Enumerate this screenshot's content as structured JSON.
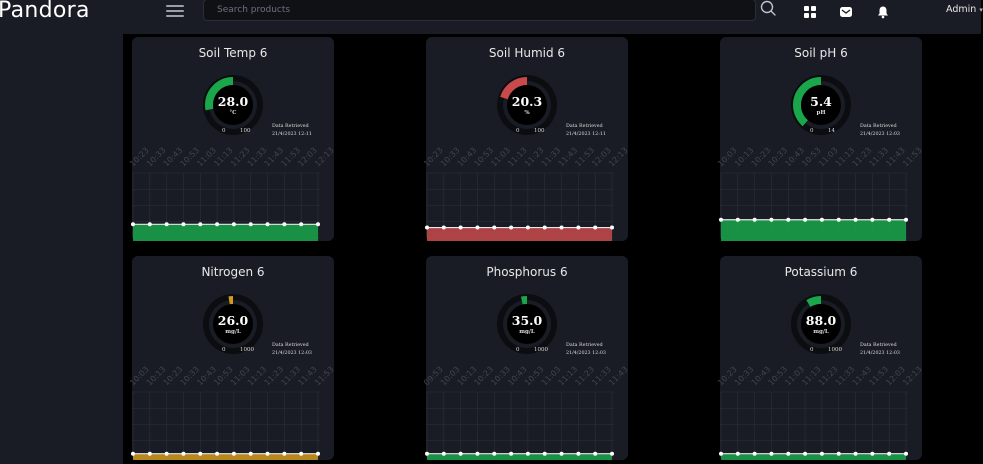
{
  "app": {
    "brand": "Pandora"
  },
  "search": {
    "placeholder": "Search products"
  },
  "user": {
    "name": "Admin"
  },
  "cards": [
    {
      "title": "Soil Temp 6",
      "value": "28.0",
      "unit": "°C",
      "min": "0",
      "max": "100",
      "level": 0.28,
      "color": "#1aa64a",
      "retrieved_label": "Data Retrieved",
      "retrieved_time": "21/4/2023 12:11",
      "ticks": [
        "10:23",
        "10:33",
        "10:43",
        "10:53",
        "11:03",
        "11:13",
        "11:23",
        "11:33",
        "11:43",
        "11:53",
        "12:03",
        "12:13"
      ],
      "series_level": 0.18
    },
    {
      "title": "Soil Humid 6",
      "value": "20.3",
      "unit": "%",
      "min": "0",
      "max": "100",
      "level": 0.203,
      "color": "#c84a4a",
      "retrieved_label": "Data Retrieved",
      "retrieved_time": "21/4/2023 12:11",
      "ticks": [
        "10:23",
        "10:33",
        "10:43",
        "10:53",
        "11:03",
        "11:13",
        "11:23",
        "11:33",
        "11:43",
        "11:53",
        "12:03",
        "12:13"
      ],
      "series_level": 0.13
    },
    {
      "title": "Soil pH 6",
      "value": "5.4",
      "unit": "pH",
      "min": "0",
      "max": "14",
      "level": 0.386,
      "color": "#1aa64a",
      "retrieved_label": "Data Retrieved",
      "retrieved_time": "21/4/2023 12:03",
      "ticks": [
        "10:03",
        "10:13",
        "10:23",
        "10:33",
        "10:43",
        "10:53",
        "11:03",
        "11:13",
        "11:23",
        "11:33",
        "11:43",
        "11:53"
      ],
      "series_level": 0.25
    },
    {
      "title": "Nitrogen 6",
      "value": "26.0",
      "unit": "mg/L",
      "min": "0",
      "max": "1000",
      "level": 0.026,
      "color": "#d49a1c",
      "retrieved_label": "Data Retrieved",
      "retrieved_time": "21/4/2023 12:03",
      "ticks": [
        "10:03",
        "10:13",
        "10:23",
        "10:33",
        "10:43",
        "10:53",
        "11:03",
        "11:13",
        "11:23",
        "11:33",
        "11:43",
        "11:53"
      ],
      "series_level": 0.02
    },
    {
      "title": "Phosphorus 6",
      "value": "35.0",
      "unit": "mg/L",
      "min": "0",
      "max": "1000",
      "level": 0.035,
      "color": "#1aa64a",
      "retrieved_label": "Data Retrieved",
      "retrieved_time": "21/4/2023 12:03",
      "ticks": [
        "09:53",
        "10:03",
        "10:13",
        "10:23",
        "10:33",
        "10:43",
        "10:53",
        "11:03",
        "11:13",
        "11:23",
        "11:33",
        "11:43"
      ],
      "series_level": 0.02
    },
    {
      "title": "Potassium 6",
      "value": "88.0",
      "unit": "mg/L",
      "min": "0",
      "max": "1000",
      "level": 0.088,
      "color": "#1aa64a",
      "retrieved_label": "Data Retrieved",
      "retrieved_time": "21/4/2023 12:03",
      "ticks": [
        "10:23",
        "10:33",
        "10:43",
        "10:53",
        "11:03",
        "11:13",
        "11:23",
        "11:33",
        "11:43",
        "11:53",
        "12:03",
        "12:13"
      ],
      "series_level": 0.02
    }
  ]
}
